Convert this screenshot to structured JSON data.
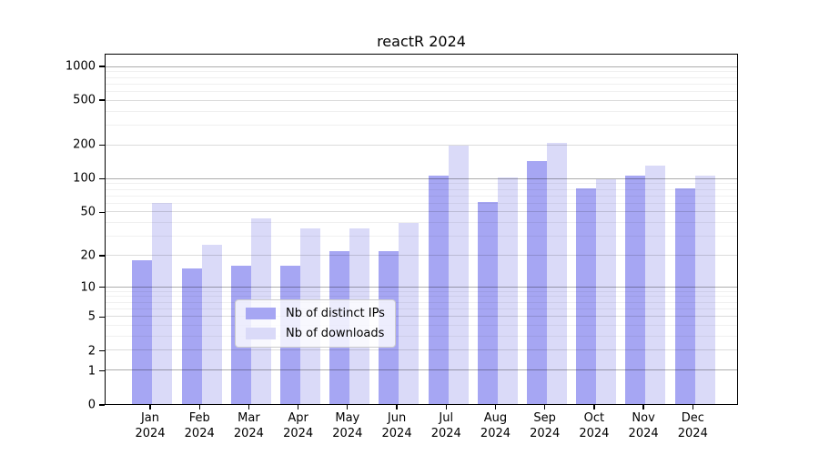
{
  "chart_data": {
    "type": "bar",
    "title": "reactR 2024",
    "year": "2024",
    "categories": [
      "Jan",
      "Feb",
      "Mar",
      "Apr",
      "May",
      "Jun",
      "Jul",
      "Aug",
      "Sep",
      "Oct",
      "Nov",
      "Dec"
    ],
    "series": [
      {
        "name": "Nb of distinct IPs",
        "color": "#a6a6f3",
        "values": [
          18,
          15,
          16,
          16,
          22,
          22,
          107,
          62,
          145,
          82,
          107,
          82
        ]
      },
      {
        "name": "Nb of downloads",
        "color": "#dadaf8",
        "values": [
          61,
          25,
          44,
          36,
          36,
          40,
          200,
          104,
          210,
          100,
          132,
          107
        ]
      }
    ],
    "xlabel": "",
    "ylabel": "",
    "yscale": "log10(x+1)",
    "y_ticks": [
      0,
      1,
      2,
      5,
      10,
      20,
      50,
      100,
      200,
      500,
      1000
    ],
    "y_minor_ticks": [
      3,
      4,
      6,
      7,
      8,
      9,
      30,
      40,
      60,
      70,
      80,
      90,
      300,
      400,
      600,
      700,
      800,
      900
    ],
    "ylim": [
      0,
      1295
    ],
    "grid": true,
    "legend_position": "lower center inside plot"
  },
  "colors": {
    "background": "#ffffff",
    "spine": "#000000",
    "grid_power10": "rgba(0,0,0,0.32)",
    "grid_labeled": "rgba(0,0,0,0.14)",
    "grid_minor": "rgba(0,0,0,0.06)",
    "legend_border": "#cccccc"
  }
}
